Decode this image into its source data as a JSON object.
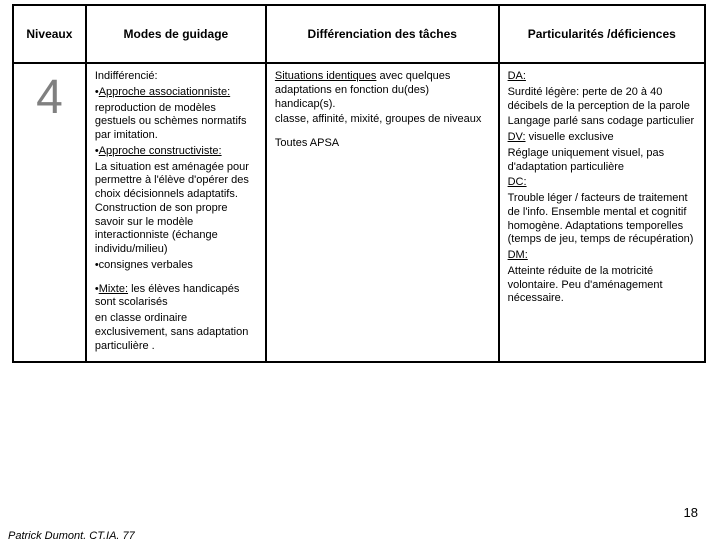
{
  "table": {
    "headers": {
      "niveaux": "Niveaux",
      "modes": "Modes de guidage",
      "diff": "Différenciation des tâches",
      "part": "Particularités /déficiences"
    },
    "row": {
      "level": "4",
      "modes": {
        "l1": "Indifférencié:",
        "l2a": "•",
        "l2u": "Approche associationniste:",
        "l3": "reproduction de modèles gestuels ou schèmes normatifs par imitation.",
        "l4a": "•",
        "l4u": "Approche constructiviste:",
        "l5": "La situation est aménagée pour permettre à l'élève d'opérer des choix décisionnels adaptatifs. Construction de son propre savoir sur le modèle interactionniste (échange individu/milieu)",
        "l6": "•consignes verbales",
        "l7a": "•",
        "l7u": "Mixte:",
        "l7b": " les élèves handicapés sont scolarisés",
        "l8": "en classe ordinaire exclusivement, sans adaptation particulière ."
      },
      "diff": {
        "l1u": "Situations identiques",
        "l1b": " avec quelques adaptations en fonction du(des) handicap(s).",
        "l2": "classe, affinité, mixité, groupes de niveaux",
        "l3": "Toutes APSA"
      },
      "part": {
        "da_h": "DA:",
        "da_1": "Surdité légère: perte de 20 à 40 décibels de la perception de la parole",
        "da_2": "Langage parlé sans codage particulier",
        "dv_h": "DV:",
        "dv_b": " visuelle exclusive",
        "dv_1": "Réglage uniquement visuel, pas d'adaptation particulière",
        "dc_h": "DC:",
        "dc_1": "Trouble léger / facteurs de traitement de l'info. Ensemble mental et cognitif homogène. Adaptations temporelles (temps de jeu, temps de récupération)",
        "dm_h": "DM:",
        "dm_1": "Atteinte réduite de la motricité volontaire. Peu d'aménagement nécessaire."
      }
    }
  },
  "page_number": "18",
  "footer": "Patrick Dumont. CT.IA. 77"
}
